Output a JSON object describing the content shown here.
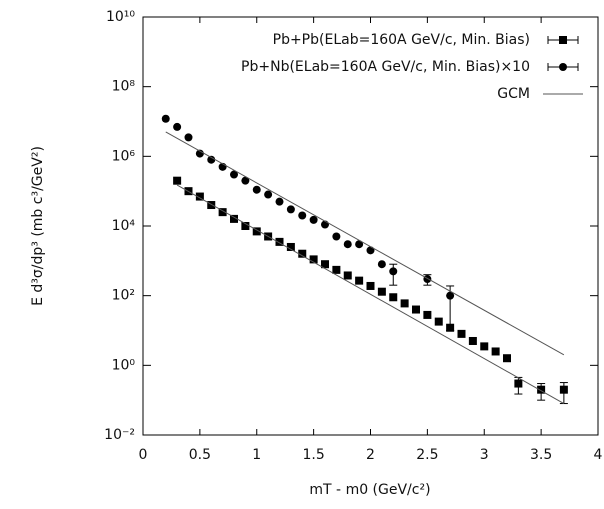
{
  "chart_data": {
    "type": "scatter",
    "xlabel": "mT - m0 (GeV/c²)",
    "ylabel": "E d³σ/dp³ (mb c³/GeV²)",
    "xlim": [
      0,
      4
    ],
    "xticks": [
      0,
      0.5,
      1,
      1.5,
      2,
      2.5,
      3,
      3.5,
      4
    ],
    "ylim": [
      0.01,
      10000000000
    ],
    "log_y": true,
    "yticks": [
      {
        "value": 0.01,
        "label": "10⁻²"
      },
      {
        "value": 1,
        "label": "10⁰"
      },
      {
        "value": 100,
        "label": "10²"
      },
      {
        "value": 10000,
        "label": "10⁴"
      },
      {
        "value": 1000000,
        "label": "10⁶"
      },
      {
        "value": 100000000,
        "label": "10⁸"
      },
      {
        "value": 10000000000,
        "label": "10¹⁰"
      }
    ],
    "legend": "top-right",
    "series": [
      {
        "name": "Pb+Pb(ELab=160A GeV/c, Min. Bias)",
        "color": "#000000",
        "marker": "square",
        "x": [
          0.3,
          0.4,
          0.5,
          0.6,
          0.7,
          0.8,
          0.9,
          1.0,
          1.1,
          1.2,
          1.3,
          1.4,
          1.5,
          1.6,
          1.7,
          1.8,
          1.9,
          2.0,
          2.1,
          2.2,
          2.3,
          2.4,
          2.5,
          2.6,
          2.7,
          2.8,
          2.9,
          3.0,
          3.1,
          3.2,
          3.3,
          3.5,
          3.7
        ],
        "values": [
          200000,
          100000,
          70000,
          40000,
          25000,
          16000,
          10000,
          7000,
          5000,
          3500,
          2500,
          1600,
          1100,
          800,
          550,
          380,
          270,
          190,
          130,
          90,
          60,
          40,
          28,
          18,
          12,
          8,
          5,
          3.5,
          2.5,
          1.6,
          0.3,
          0.2,
          0.2
        ],
        "errors": [
          null,
          null,
          null,
          null,
          null,
          null,
          null,
          null,
          null,
          null,
          null,
          null,
          null,
          null,
          null,
          null,
          null,
          null,
          null,
          null,
          null,
          null,
          null,
          null,
          null,
          null,
          null,
          null,
          null,
          null,
          0.15,
          0.1,
          0.12
        ]
      },
      {
        "name": "Pb+Nb(ELab=160A GeV/c, Min. Bias)×10",
        "color": "#000000",
        "marker": "circle",
        "x": [
          0.2,
          0.3,
          0.4,
          0.5,
          0.6,
          0.7,
          0.8,
          0.9,
          1.0,
          1.1,
          1.2,
          1.3,
          1.4,
          1.5,
          1.6,
          1.7,
          1.8,
          1.9,
          2.0,
          2.1,
          2.2,
          2.5,
          2.7
        ],
        "values": [
          12000000,
          7000000,
          3500000,
          1200000,
          800000,
          500000,
          300000,
          200000,
          110000,
          80000,
          50000,
          30000,
          20000,
          15000,
          11000,
          5000,
          3000,
          3000,
          2000,
          800,
          500,
          300,
          100
        ],
        "errors": [
          null,
          null,
          null,
          null,
          null,
          null,
          null,
          null,
          null,
          null,
          null,
          null,
          null,
          null,
          null,
          null,
          null,
          null,
          null,
          null,
          300,
          100,
          90
        ]
      }
    ],
    "model": {
      "name": "GCM",
      "color": "#555555",
      "lines": [
        {
          "x": [
            0.3,
            3.7
          ],
          "values": [
            150000,
            0.08
          ]
        },
        {
          "x": [
            0.2,
            3.7
          ],
          "values": [
            5000000,
            2
          ]
        }
      ]
    }
  }
}
